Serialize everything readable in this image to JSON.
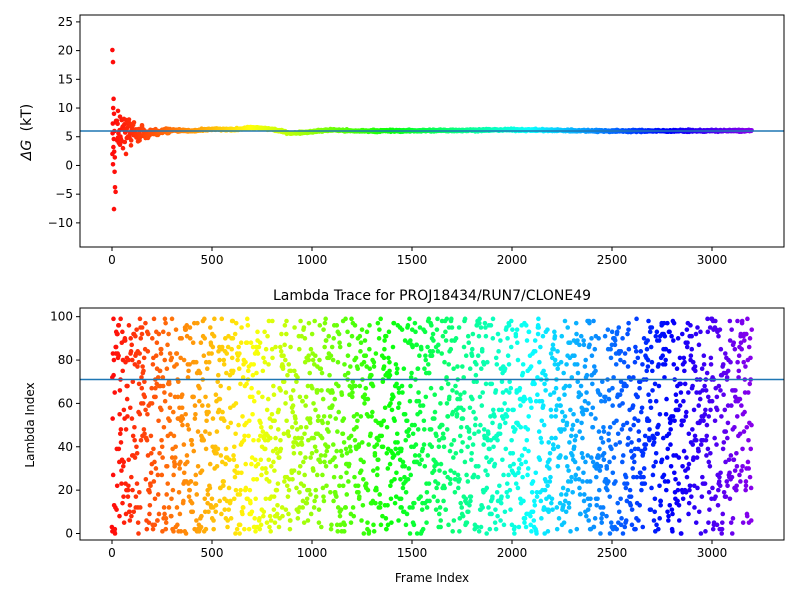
{
  "chart_data": [
    {
      "type": "scatter",
      "title": "",
      "xlabel": "",
      "ylabel_main": "ΔG",
      "ylabel_unit": "(kT)",
      "xlim": [
        -160,
        3360
      ],
      "ylim": [
        -14.2,
        26.2
      ],
      "xticks": [
        0,
        500,
        1000,
        1500,
        2000,
        2500,
        3000
      ],
      "yticks": [
        -10,
        -5,
        0,
        5,
        10,
        15,
        20,
        25
      ],
      "reference_line": {
        "y": 6.0,
        "color": "#1f77b4"
      },
      "colormap": "rainbow (reversed: red at frame 0, violet at frame 3200)",
      "series": [
        {
          "n_frames": 3200,
          "converged_value": 6.0,
          "early_points": [
            {
              "x": 2,
              "y": 20.1
            },
            {
              "x": 5,
              "y": 18.0
            },
            {
              "x": 8,
              "y": 11.6
            },
            {
              "x": 6,
              "y": 10.0
            },
            {
              "x": 10,
              "y": 9.0
            },
            {
              "x": 4,
              "y": 7.3
            },
            {
              "x": 12,
              "y": 6.0
            },
            {
              "x": 3,
              "y": 5.6
            },
            {
              "x": 9,
              "y": 4.6
            },
            {
              "x": 7,
              "y": 3.2
            },
            {
              "x": 11,
              "y": 2.4
            },
            {
              "x": 2,
              "y": 2.0
            },
            {
              "x": 14,
              "y": 1.4
            },
            {
              "x": 5,
              "y": 0.2
            },
            {
              "x": 13,
              "y": -1.1
            },
            {
              "x": 15,
              "y": -3.8
            },
            {
              "x": 18,
              "y": -4.6
            },
            {
              "x": 10,
              "y": -7.6
            },
            {
              "x": 30,
              "y": 9.5
            },
            {
              "x": 40,
              "y": 8.5
            },
            {
              "x": 55,
              "y": 3.0
            },
            {
              "x": 70,
              "y": 2.0
            },
            {
              "x": 85,
              "y": 8.0
            },
            {
              "x": 95,
              "y": 3.5
            },
            {
              "x": 110,
              "y": 7.5
            },
            {
              "x": 130,
              "y": 4.2
            },
            {
              "x": 150,
              "y": 7.0
            },
            {
              "x": 180,
              "y": 4.8
            }
          ],
          "trend": [
            {
              "x": 100,
              "y": 5.8
            },
            {
              "x": 200,
              "y": 5.6
            },
            {
              "x": 300,
              "y": 6.2
            },
            {
              "x": 400,
              "y": 6.0
            },
            {
              "x": 500,
              "y": 6.3
            },
            {
              "x": 600,
              "y": 6.2
            },
            {
              "x": 700,
              "y": 6.6
            },
            {
              "x": 800,
              "y": 6.3
            },
            {
              "x": 900,
              "y": 5.6
            },
            {
              "x": 1000,
              "y": 5.9
            },
            {
              "x": 1100,
              "y": 6.2
            },
            {
              "x": 1200,
              "y": 6.0
            },
            {
              "x": 1500,
              "y": 6.05
            },
            {
              "x": 2000,
              "y": 6.2
            },
            {
              "x": 2500,
              "y": 6.0
            },
            {
              "x": 3200,
              "y": 6.05
            }
          ]
        }
      ]
    },
    {
      "type": "scatter",
      "title": "Lambda Trace for PROJ18434/RUN7/CLONE49",
      "xlabel": "Frame Index",
      "ylabel": "Lambda Index",
      "xlim": [
        -160,
        3360
      ],
      "ylim": [
        -3,
        104
      ],
      "xticks": [
        0,
        500,
        1000,
        1500,
        2000,
        2500,
        3000
      ],
      "yticks": [
        0,
        20,
        40,
        60,
        80,
        100
      ],
      "reference_line": {
        "y": 71,
        "color": "#1f77b4"
      },
      "colormap": "rainbow (reversed: red at frame 0, violet at frame 3200)",
      "series": [
        {
          "n_frames": 3200,
          "lambda_range": [
            0,
            99
          ],
          "distribution": "uniform across lambda indices 0-99 over all frames"
        }
      ]
    }
  ]
}
